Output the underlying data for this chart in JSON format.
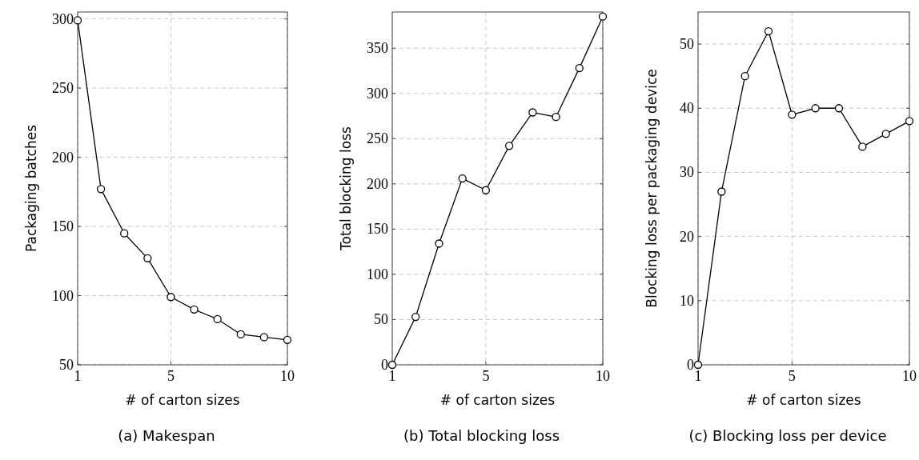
{
  "chart_data": [
    {
      "type": "line",
      "xlabel": "# of carton sizes",
      "ylabel": "Packaging batches",
      "annotations": [
        "(a) Makespan"
      ],
      "x": [
        1,
        2,
        3,
        4,
        5,
        6,
        7,
        8,
        9,
        10
      ],
      "series": [
        {
          "color": "#000000",
          "values": [
            299,
            177,
            145,
            127,
            99,
            90,
            83,
            72,
            70,
            68
          ]
        }
      ],
      "xlim": [
        1,
        10
      ],
      "xticks": [
        1,
        5,
        10
      ],
      "ylim": [
        50,
        305
      ],
      "yticks": [
        50,
        100,
        150,
        200,
        250,
        300
      ],
      "grid": true,
      "marker": "circle",
      "line_style": "solid"
    },
    {
      "type": "line",
      "xlabel": "# of carton sizes",
      "ylabel": "Total blocking loss",
      "annotations": [
        "(b) Total blocking loss"
      ],
      "x": [
        1,
        2,
        3,
        4,
        5,
        6,
        7,
        8,
        9,
        10
      ],
      "series": [
        {
          "color": "#000000",
          "values": [
            0,
            53,
            134,
            206,
            193,
            242,
            279,
            274,
            328,
            385
          ]
        }
      ],
      "xlim": [
        1,
        10
      ],
      "xticks": [
        1,
        5,
        10
      ],
      "ylim": [
        0,
        390
      ],
      "yticks": [
        0,
        50,
        100,
        150,
        200,
        250,
        300,
        350
      ],
      "grid": true,
      "marker": "circle",
      "line_style": "solid"
    },
    {
      "type": "line",
      "xlabel": "# of carton sizes",
      "ylabel": "Blocking loss per packaging device",
      "annotations": [
        "(c) Blocking loss per device"
      ],
      "x": [
        1,
        2,
        3,
        4,
        5,
        6,
        7,
        8,
        9,
        10
      ],
      "series": [
        {
          "color": "#000000",
          "values": [
            0,
            27,
            45,
            52,
            39,
            40,
            40,
            34,
            36,
            38
          ]
        }
      ],
      "xlim": [
        1,
        10
      ],
      "xticks": [
        1,
        5,
        10
      ],
      "ylim": [
        0,
        55
      ],
      "yticks": [
        0,
        10,
        20,
        30,
        40,
        50
      ],
      "grid": true,
      "marker": "circle",
      "line_style": "solid"
    }
  ]
}
